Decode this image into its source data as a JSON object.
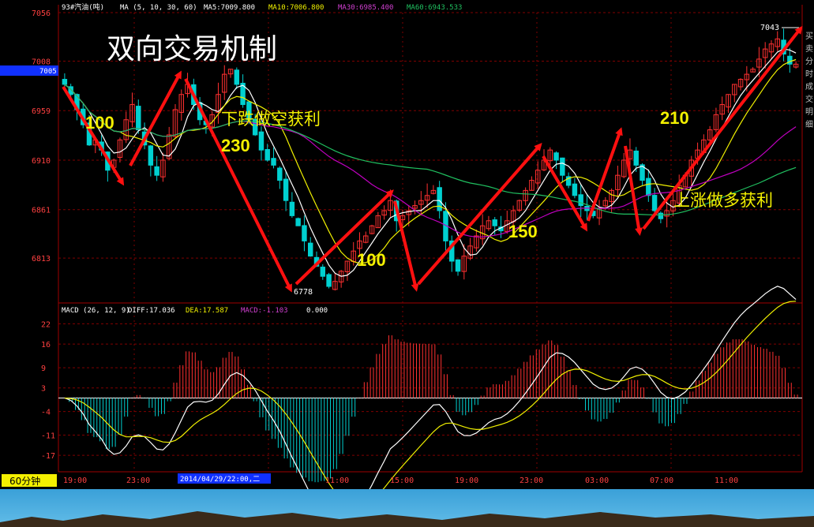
{
  "header": {
    "symbol": "93#汽油(吨)",
    "ma_label": "MA (5, 10, 30, 60)",
    "ma5": "MA5:7009.800",
    "ma10": "MA10:7006.800",
    "ma30": "MA30:6985.400",
    "ma60": "MA60:6943.533"
  },
  "slide_title": "双向交易机制",
  "price_axis": {
    "ticks": [
      "7056",
      "7008",
      "6959",
      "6910",
      "6861",
      "6813"
    ],
    "current_price": "7005",
    "high_label": "7043",
    "low_label": "6778"
  },
  "annotations": [
    {
      "text": "100",
      "color": "#f4f000"
    },
    {
      "text": "下跌做空获利",
      "color": "#f4f000"
    },
    {
      "text": "230",
      "color": "#f4f000"
    },
    {
      "text": "100",
      "color": "#f4f000"
    },
    {
      "text": "150",
      "color": "#f4f000"
    },
    {
      "text": "210",
      "color": "#f4f000"
    },
    {
      "text": "上涨做多获利",
      "color": "#f4f000"
    }
  ],
  "right_side_text": "买卖分时成交明细",
  "macd": {
    "label": "MACD (26, 12, 9)",
    "diff": "DIFF:17.036",
    "dea": "DEA:17.587",
    "macd": "MACD:-1.103",
    "zero": "0.000",
    "ticks": [
      "22",
      "16",
      "9",
      "3",
      "-4",
      "-11",
      "-17"
    ]
  },
  "time_axis": {
    "period": "60分钟",
    "cursor_date": "2014/04/29/22:00,二",
    "labels": [
      "19:00",
      "23:00",
      "",
      "11:00",
      "15:00",
      "19:00",
      "23:00",
      "03:00",
      "07:00",
      "11:00"
    ]
  },
  "colors": {
    "up": "#ff3030",
    "down": "#00d0d0",
    "grid": "#800000",
    "arrow": "#ff1010",
    "annotation": "#f4f000",
    "axis_text": "#ff4040",
    "ma5": "#ffffff",
    "ma10": "#f0f000",
    "ma30": "#c000c0",
    "ma60": "#20c060"
  },
  "chart_data": {
    "type": "candlestick",
    "y_range": [
      6778,
      7056
    ],
    "close_series": [
      6985,
      6975,
      6960,
      6945,
      6925,
      6930,
      6920,
      6900,
      6910,
      6930,
      6950,
      6965,
      6940,
      6925,
      6905,
      6895,
      6910,
      6935,
      6960,
      6975,
      6985,
      6965,
      6950,
      6945,
      6955,
      6975,
      6995,
      7000,
      6985,
      6965,
      6950,
      6935,
      6920,
      6910,
      6905,
      6890,
      6870,
      6855,
      6845,
      6830,
      6815,
      6805,
      6795,
      6785,
      6790,
      6800,
      6810,
      6820,
      6830,
      6835,
      6845,
      6855,
      6860,
      6870,
      6850,
      6855,
      6860,
      6865,
      6870,
      6875,
      6880,
      6860,
      6830,
      6810,
      6800,
      6815,
      6825,
      6835,
      6845,
      6850,
      6845,
      6840,
      6850,
      6860,
      6870,
      6880,
      6890,
      6900,
      6910,
      6920,
      6910,
      6895,
      6885,
      6875,
      6865,
      6860,
      6855,
      6862,
      6870,
      6880,
      6895,
      6910,
      6920,
      6905,
      6890,
      6875,
      6860,
      6852,
      6860,
      6870,
      6885,
      6895,
      6910,
      6920,
      6930,
      6940,
      6955,
      6965,
      6975,
      6985,
      6990,
      6995,
      7000,
      7010,
      7020,
      7025,
      7030,
      7015,
      7005,
      7005
    ]
  }
}
